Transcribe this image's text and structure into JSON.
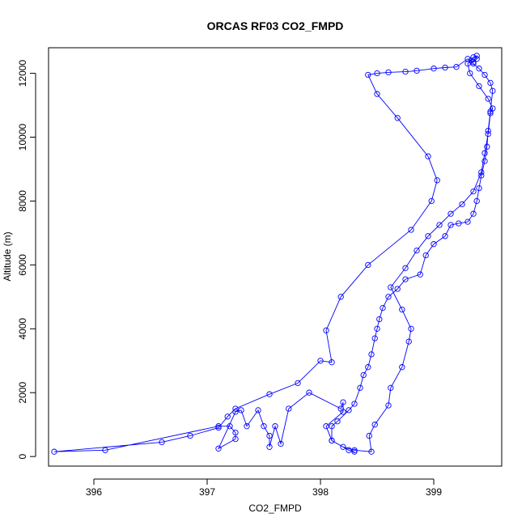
{
  "chart_data": {
    "type": "line",
    "title": "ORCAS RF03 CO2_FMPD",
    "xlabel": "CO2_FMPD",
    "ylabel": "Altitude (m)",
    "xlim": [
      395.6,
      399.6
    ],
    "ylim": [
      -300,
      12800
    ],
    "xticks": [
      396,
      397,
      398,
      399
    ],
    "yticks": [
      0,
      2000,
      4000,
      6000,
      8000,
      10000,
      12000
    ],
    "grid": false,
    "series": [
      {
        "color": "#0000ff",
        "marker": "open-circle",
        "points": [
          [
            398.3,
            150
          ],
          [
            398.25,
            200
          ],
          [
            398.1,
            500
          ],
          [
            398.1,
            950
          ],
          [
            398.15,
            1100
          ],
          [
            398.25,
            1450
          ],
          [
            398.3,
            1650
          ],
          [
            398.35,
            2150
          ],
          [
            398.38,
            2550
          ],
          [
            398.42,
            2800
          ],
          [
            398.45,
            3200
          ],
          [
            398.48,
            3700
          ],
          [
            398.5,
            4000
          ],
          [
            398.52,
            4300
          ],
          [
            398.55,
            4650
          ],
          [
            398.6,
            5000
          ],
          [
            398.68,
            5250
          ],
          [
            398.75,
            5550
          ],
          [
            398.88,
            5700
          ],
          [
            398.93,
            6300
          ],
          [
            399.0,
            6650
          ],
          [
            399.1,
            6900
          ],
          [
            399.15,
            7250
          ],
          [
            399.22,
            7300
          ],
          [
            399.3,
            7350
          ],
          [
            399.35,
            7600
          ],
          [
            399.38,
            8000
          ],
          [
            399.4,
            8400
          ],
          [
            399.42,
            8800
          ],
          [
            399.45,
            9250
          ],
          [
            399.47,
            9700
          ],
          [
            399.48,
            10200
          ],
          [
            399.5,
            10800
          ],
          [
            399.52,
            11450
          ],
          [
            399.5,
            11700
          ],
          [
            399.45,
            11950
          ],
          [
            399.4,
            12150
          ],
          [
            399.35,
            12300
          ],
          [
            399.33,
            12400
          ],
          [
            399.3,
            12450
          ],
          [
            399.2,
            12200
          ],
          [
            399.1,
            12180
          ],
          [
            399.0,
            12150
          ],
          [
            398.85,
            12080
          ],
          [
            398.75,
            12050
          ],
          [
            398.6,
            12030
          ],
          [
            398.5,
            12000
          ],
          [
            398.42,
            11950
          ],
          [
            398.5,
            11350
          ],
          [
            398.68,
            10600
          ],
          [
            398.95,
            9400
          ],
          [
            399.03,
            8650
          ],
          [
            398.98,
            8000
          ],
          [
            398.8,
            7100
          ],
          [
            398.42,
            6000
          ],
          [
            398.18,
            5000
          ],
          [
            398.05,
            3950
          ],
          [
            398.1,
            2950
          ],
          [
            398.0,
            3000
          ],
          [
            397.8,
            2300
          ],
          [
            397.55,
            1950
          ],
          [
            397.25,
            1500
          ],
          [
            397.18,
            1250
          ],
          [
            397.1,
            900
          ],
          [
            396.85,
            650
          ],
          [
            396.6,
            450
          ],
          [
            395.65,
            150
          ],
          [
            396.1,
            200
          ],
          [
            397.1,
            950
          ],
          [
            397.2,
            950
          ],
          [
            397.25,
            750
          ],
          [
            397.25,
            550
          ],
          [
            397.1,
            250
          ],
          [
            397.25,
            1400
          ],
          [
            397.3,
            1450
          ],
          [
            397.35,
            950
          ],
          [
            397.45,
            1450
          ],
          [
            397.5,
            950
          ],
          [
            397.55,
            650
          ],
          [
            397.55,
            300
          ],
          [
            397.6,
            950
          ],
          [
            397.65,
            400
          ],
          [
            397.72,
            1500
          ],
          [
            397.9,
            2000
          ],
          [
            398.18,
            1500
          ],
          [
            398.2,
            1700
          ],
          [
            398.2,
            1400
          ],
          [
            398.05,
            950
          ],
          [
            398.1,
            500
          ],
          [
            398.2,
            300
          ],
          [
            398.3,
            200
          ],
          [
            398.45,
            150
          ],
          [
            398.43,
            650
          ],
          [
            398.48,
            1000
          ],
          [
            398.6,
            1600
          ],
          [
            398.62,
            2150
          ],
          [
            398.72,
            2800
          ],
          [
            398.78,
            3600
          ],
          [
            398.8,
            4000
          ],
          [
            398.72,
            4600
          ],
          [
            398.62,
            5300
          ],
          [
            398.75,
            5900
          ],
          [
            398.85,
            6450
          ],
          [
            398.95,
            6900
          ],
          [
            399.05,
            7250
          ],
          [
            399.15,
            7600
          ],
          [
            399.25,
            7900
          ],
          [
            399.35,
            8300
          ],
          [
            399.42,
            8900
          ],
          [
            399.45,
            9500
          ],
          [
            399.48,
            10100
          ],
          [
            399.5,
            10750
          ],
          [
            399.52,
            10900
          ],
          [
            399.48,
            11200
          ],
          [
            399.4,
            11600
          ],
          [
            399.32,
            12000
          ],
          [
            399.3,
            12300
          ],
          [
            399.35,
            12500
          ],
          [
            399.38,
            12550
          ],
          [
            399.38,
            12450
          ],
          [
            399.35,
            12350
          ]
        ]
      }
    ]
  }
}
